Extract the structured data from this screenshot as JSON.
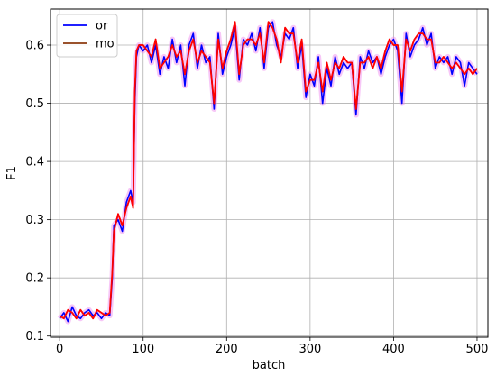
{
  "chart_data": {
    "type": "line",
    "xlabel": "batch",
    "ylabel": "F1",
    "xlim": [
      -11,
      513
    ],
    "ylim": [
      0.098,
      0.662
    ],
    "xticks": [
      0,
      100,
      200,
      300,
      400,
      500
    ],
    "yticks": [
      0.1,
      0.2,
      0.3,
      0.4,
      0.5,
      0.6
    ],
    "grid": true,
    "legend_position": "top-left",
    "series": [
      {
        "name": "or",
        "color": "#0000ff",
        "shadow_color": "#ee82ee"
      },
      {
        "name": "mo",
        "color": "#8b3a0e",
        "overlay_color": "#ff0000"
      }
    ],
    "x": [
      0,
      5,
      10,
      15,
      20,
      25,
      30,
      35,
      40,
      45,
      50,
      55,
      60,
      63,
      65,
      70,
      75,
      80,
      85,
      88,
      90,
      92,
      95,
      100,
      105,
      110,
      115,
      120,
      125,
      130,
      135,
      140,
      145,
      150,
      155,
      160,
      165,
      170,
      175,
      180,
      185,
      190,
      195,
      200,
      205,
      210,
      215,
      220,
      225,
      230,
      235,
      240,
      245,
      250,
      255,
      260,
      265,
      270,
      275,
      280,
      285,
      290,
      295,
      300,
      305,
      310,
      315,
      320,
      325,
      330,
      335,
      340,
      345,
      350,
      355,
      360,
      365,
      370,
      375,
      380,
      385,
      390,
      395,
      400,
      405,
      410,
      415,
      420,
      425,
      430,
      435,
      440,
      445,
      450,
      455,
      460,
      465,
      470,
      475,
      480,
      485,
      490,
      495,
      500
    ],
    "or_values": [
      0.13,
      0.14,
      0.125,
      0.15,
      0.135,
      0.13,
      0.14,
      0.145,
      0.135,
      0.14,
      0.13,
      0.14,
      0.135,
      0.2,
      0.29,
      0.3,
      0.28,
      0.33,
      0.35,
      0.33,
      0.5,
      0.58,
      0.6,
      0.59,
      0.6,
      0.57,
      0.6,
      0.55,
      0.58,
      0.56,
      0.61,
      0.57,
      0.6,
      0.53,
      0.6,
      0.62,
      0.56,
      0.6,
      0.57,
      0.58,
      0.49,
      0.62,
      0.55,
      0.58,
      0.6,
      0.63,
      0.54,
      0.61,
      0.6,
      0.62,
      0.59,
      0.63,
      0.56,
      0.63,
      0.64,
      0.6,
      0.58,
      0.62,
      0.61,
      0.63,
      0.56,
      0.6,
      0.51,
      0.55,
      0.53,
      0.58,
      0.5,
      0.56,
      0.53,
      0.58,
      0.55,
      0.57,
      0.56,
      0.57,
      0.48,
      0.58,
      0.56,
      0.59,
      0.57,
      0.58,
      0.55,
      0.58,
      0.6,
      0.61,
      0.59,
      0.5,
      0.62,
      0.58,
      0.6,
      0.61,
      0.63,
      0.6,
      0.62,
      0.56,
      0.58,
      0.57,
      0.58,
      0.55,
      0.58,
      0.57,
      0.53,
      0.57,
      0.56,
      0.55
    ],
    "mo_values": [
      0.135,
      0.13,
      0.145,
      0.14,
      0.13,
      0.145,
      0.135,
      0.14,
      0.13,
      0.145,
      0.14,
      0.135,
      0.14,
      0.21,
      0.28,
      0.31,
      0.29,
      0.32,
      0.34,
      0.32,
      0.52,
      0.59,
      0.6,
      0.6,
      0.59,
      0.58,
      0.61,
      0.56,
      0.57,
      0.58,
      0.6,
      0.58,
      0.59,
      0.55,
      0.59,
      0.61,
      0.57,
      0.59,
      0.58,
      0.57,
      0.5,
      0.61,
      0.56,
      0.59,
      0.61,
      0.64,
      0.55,
      0.6,
      0.61,
      0.61,
      0.6,
      0.62,
      0.57,
      0.64,
      0.63,
      0.61,
      0.57,
      0.63,
      0.62,
      0.62,
      0.57,
      0.61,
      0.52,
      0.54,
      0.54,
      0.57,
      0.52,
      0.57,
      0.54,
      0.57,
      0.56,
      0.58,
      0.57,
      0.57,
      0.49,
      0.57,
      0.57,
      0.58,
      0.56,
      0.58,
      0.56,
      0.59,
      0.61,
      0.6,
      0.6,
      0.52,
      0.61,
      0.59,
      0.61,
      0.62,
      0.62,
      0.61,
      0.61,
      0.57,
      0.57,
      0.58,
      0.57,
      0.56,
      0.57,
      0.56,
      0.55,
      0.56,
      0.55,
      0.56
    ]
  }
}
